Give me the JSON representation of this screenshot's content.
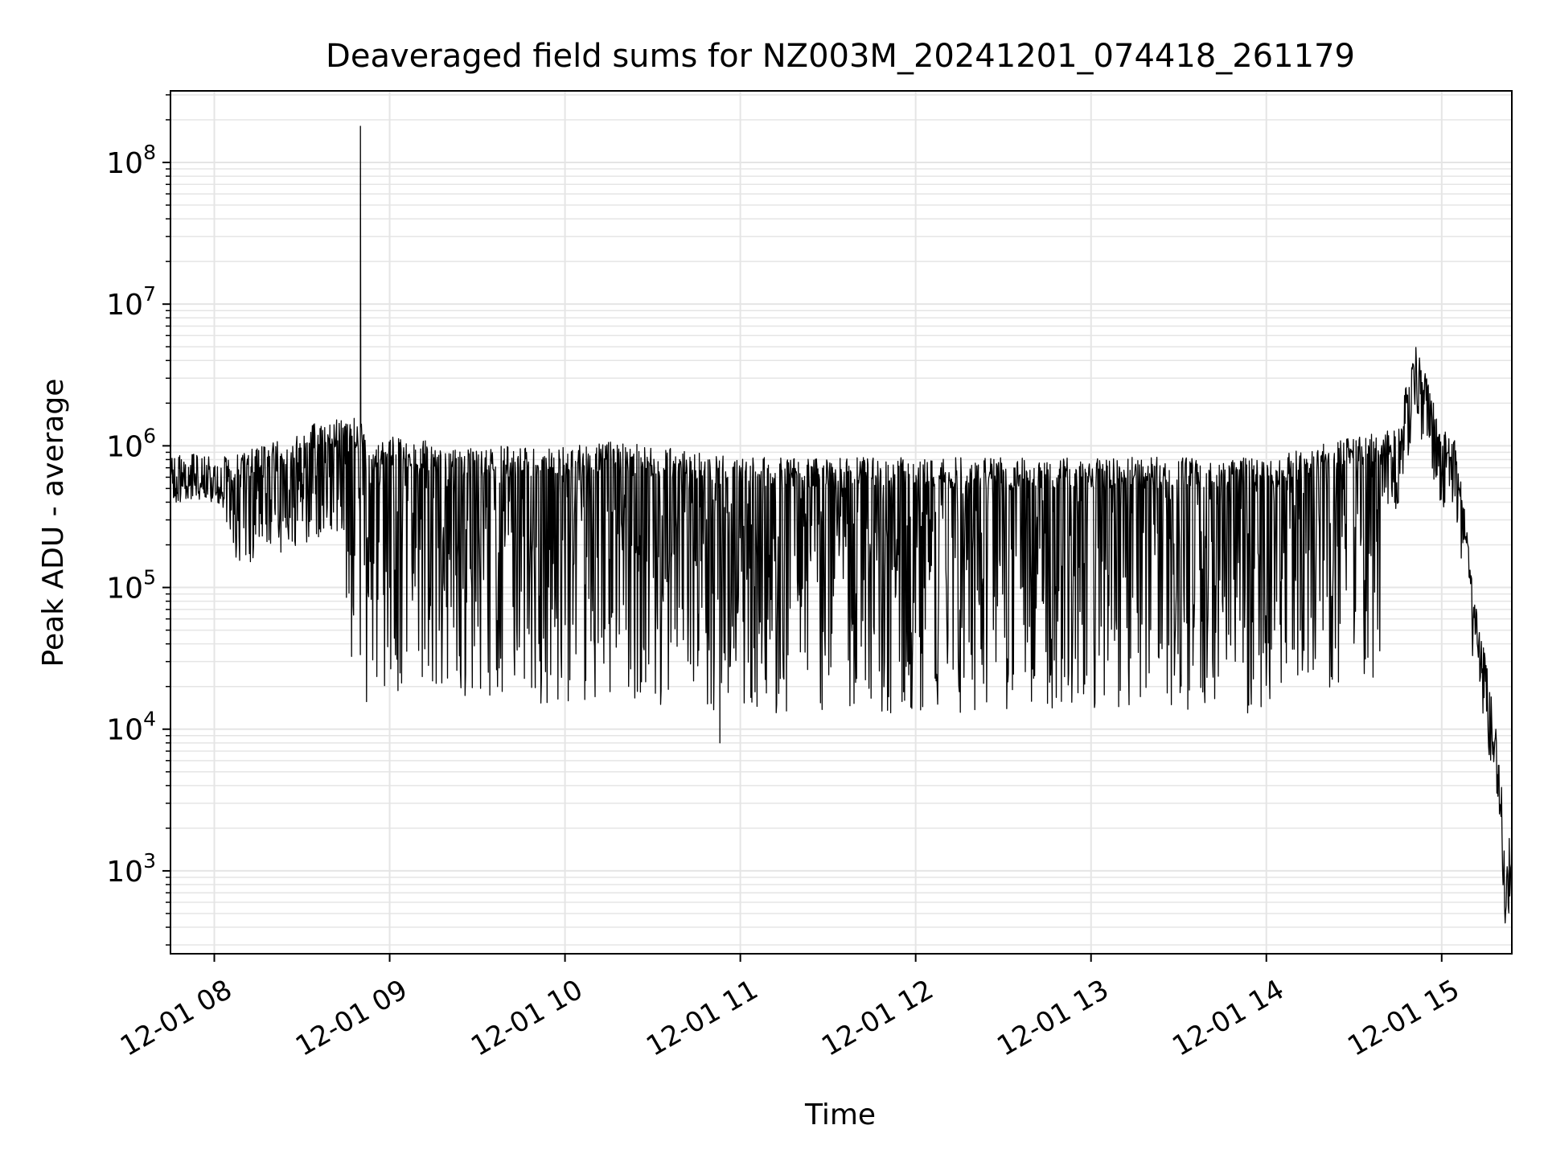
{
  "chart_data": {
    "type": "line",
    "title": "Deaveraged field sums for NZ003M_20241201_074418_261179",
    "xlabel": "Time",
    "ylabel": "Peak ADU - average",
    "yscale": "log",
    "grid": true,
    "grid_minor": true,
    "legend": "none",
    "line_color": "#000000",
    "grid_color": "#e5e5e5",
    "xlim": [
      "2024-12-01 07:45",
      "2024-12-01 15:24"
    ],
    "ylim": [
      260,
      320000000
    ],
    "x_ticks": [
      {
        "value": "2024-12-01 08:00",
        "label": "12-01 08"
      },
      {
        "value": "2024-12-01 09:00",
        "label": "12-01 09"
      },
      {
        "value": "2024-12-01 10:00",
        "label": "12-01 10"
      },
      {
        "value": "2024-12-01 11:00",
        "label": "12-01 11"
      },
      {
        "value": "2024-12-01 12:00",
        "label": "12-01 12"
      },
      {
        "value": "2024-12-01 13:00",
        "label": "12-01 13"
      },
      {
        "value": "2024-12-01 14:00",
        "label": "12-01 14"
      },
      {
        "value": "2024-12-01 15:00",
        "label": "12-01 15"
      }
    ],
    "y_ticks": [
      {
        "value": 1000,
        "base": "10",
        "exp": "3"
      },
      {
        "value": 10000,
        "base": "10",
        "exp": "4"
      },
      {
        "value": 100000,
        "base": "10",
        "exp": "5"
      },
      {
        "value": 1000000,
        "base": "10",
        "exp": "6"
      },
      {
        "value": 10000000,
        "base": "10",
        "exp": "7"
      },
      {
        "value": 100000000,
        "base": "10",
        "exp": "8"
      }
    ],
    "series": [
      {
        "x": [
          "2024-12-01 07:45",
          "2024-12-01 07:55",
          "2024-12-01 08:05",
          "2024-12-01 08:15",
          "2024-12-01 08:25",
          "2024-12-01 08:35",
          "2024-12-01 08:45",
          "2024-12-01 08:50",
          "2024-12-01 08:50",
          "2024-12-01 08:51",
          "2024-12-01 08:52",
          "2024-12-01 09:00",
          "2024-12-01 09:15",
          "2024-12-01 09:30",
          "2024-12-01 09:45",
          "2024-12-01 10:00",
          "2024-12-01 10:15",
          "2024-12-01 10:30",
          "2024-12-01 10:45",
          "2024-12-01 10:53",
          "2024-12-01 11:00",
          "2024-12-01 11:30",
          "2024-12-01 12:00",
          "2024-12-01 12:30",
          "2024-12-01 13:00",
          "2024-12-01 13:30",
          "2024-12-01 14:00",
          "2024-12-01 14:15",
          "2024-12-01 14:30",
          "2024-12-01 14:45",
          "2024-12-01 14:51",
          "2024-12-01 15:00",
          "2024-12-01 15:05",
          "2024-12-01 15:08",
          "2024-12-01 15:12",
          "2024-12-01 15:16",
          "2024-12-01 15:20",
          "2024-12-01 15:22",
          "2024-12-01 15:24"
        ],
        "y": [
          520000,
          540000,
          500000,
          600000,
          700000,
          900000,
          1000000,
          900000,
          180000000,
          800000,
          600000,
          700000,
          650000,
          600000,
          600000,
          600000,
          650000,
          600000,
          550000,
          8000,
          500000,
          500000,
          500000,
          500000,
          500000,
          500000,
          500000,
          600000,
          700000,
          800000,
          3500000,
          800000,
          700000,
          200000,
          40000,
          15000,
          4000,
          500,
          2000
        ]
      }
    ]
  }
}
